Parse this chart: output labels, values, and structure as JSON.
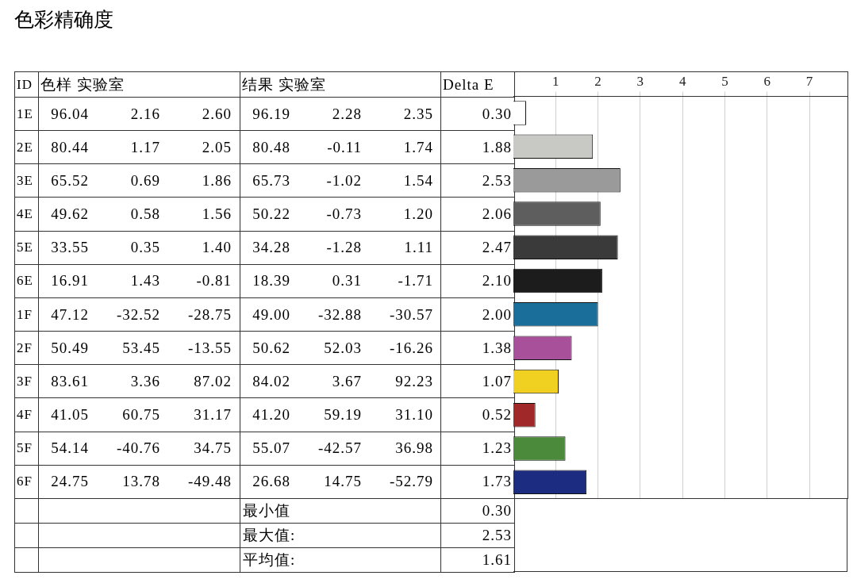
{
  "chart_data": {
    "type": "bar",
    "title": "色彩精确度",
    "orientation": "horizontal",
    "categories": [
      "1E",
      "2E",
      "3E",
      "4E",
      "5E",
      "6E",
      "1F",
      "2F",
      "3F",
      "4F",
      "5F",
      "6F"
    ],
    "values": [
      0.3,
      1.88,
      2.53,
      2.06,
      2.47,
      2.1,
      2.0,
      1.38,
      1.07,
      0.52,
      1.23,
      1.73
    ],
    "value_labels": [
      "0.30",
      "1.88",
      "2.53",
      "2.06",
      "2.47",
      "2.10",
      "2.00",
      "1.38",
      "1.07",
      "0.52",
      "1.23",
      "1.73"
    ],
    "colors": [
      "#ffffff",
      "#c8c9c5",
      "#9a9a9a",
      "#5e5e5e",
      "#3a3a3a",
      "#1c1c1c",
      "#1a6e9a",
      "#a8509a",
      "#f0d020",
      "#a02828",
      "#4a8a3a",
      "#1c2c80"
    ],
    "x2lim": [
      0,
      7.9
    ],
    "x2ticks": [
      1,
      2,
      3,
      4,
      5,
      6,
      7
    ],
    "grid": "x",
    "legend": false,
    "tick_labels": "x",
    "annotations": [
      "ID",
      "色样 实验室",
      "结果 实验室",
      "Delta E",
      "96.04",
      "2.16",
      "2.60",
      "96.19",
      "2.28",
      "2.35",
      "80.44",
      "1.17",
      "2.05",
      "80.48",
      "-0.11",
      "1.74",
      "65.52",
      "0.69",
      "1.86",
      "65.73",
      "-1.02",
      "1.54",
      "49.62",
      "0.58",
      "1.56",
      "50.22",
      "-0.73",
      "1.20",
      "33.55",
      "0.35",
      "1.40",
      "34.28",
      "-1.28",
      "1.11",
      "16.91",
      "1.43",
      "-0.81",
      "18.39",
      "0.31",
      "-1.71",
      "47.12",
      "-32.52",
      "-28.75",
      "49.00",
      "-32.88",
      "-30.57",
      "50.49",
      "53.45",
      "-13.55",
      "50.62",
      "52.03",
      "-16.26",
      "83.61",
      "3.36",
      "87.02",
      "84.02",
      "3.67",
      "92.23",
      "41.05",
      "60.75",
      "31.17",
      "41.20",
      "59.19",
      "31.10",
      "54.14",
      "-40.76",
      "34.75",
      "55.07",
      "-42.57",
      "36.98",
      "24.75",
      "13.78",
      "-49.48",
      "26.68",
      "14.75",
      "-52.79",
      "最小值",
      "0.30",
      "最大值:",
      "2.53",
      "平均值:",
      "1.61"
    ]
  }
}
